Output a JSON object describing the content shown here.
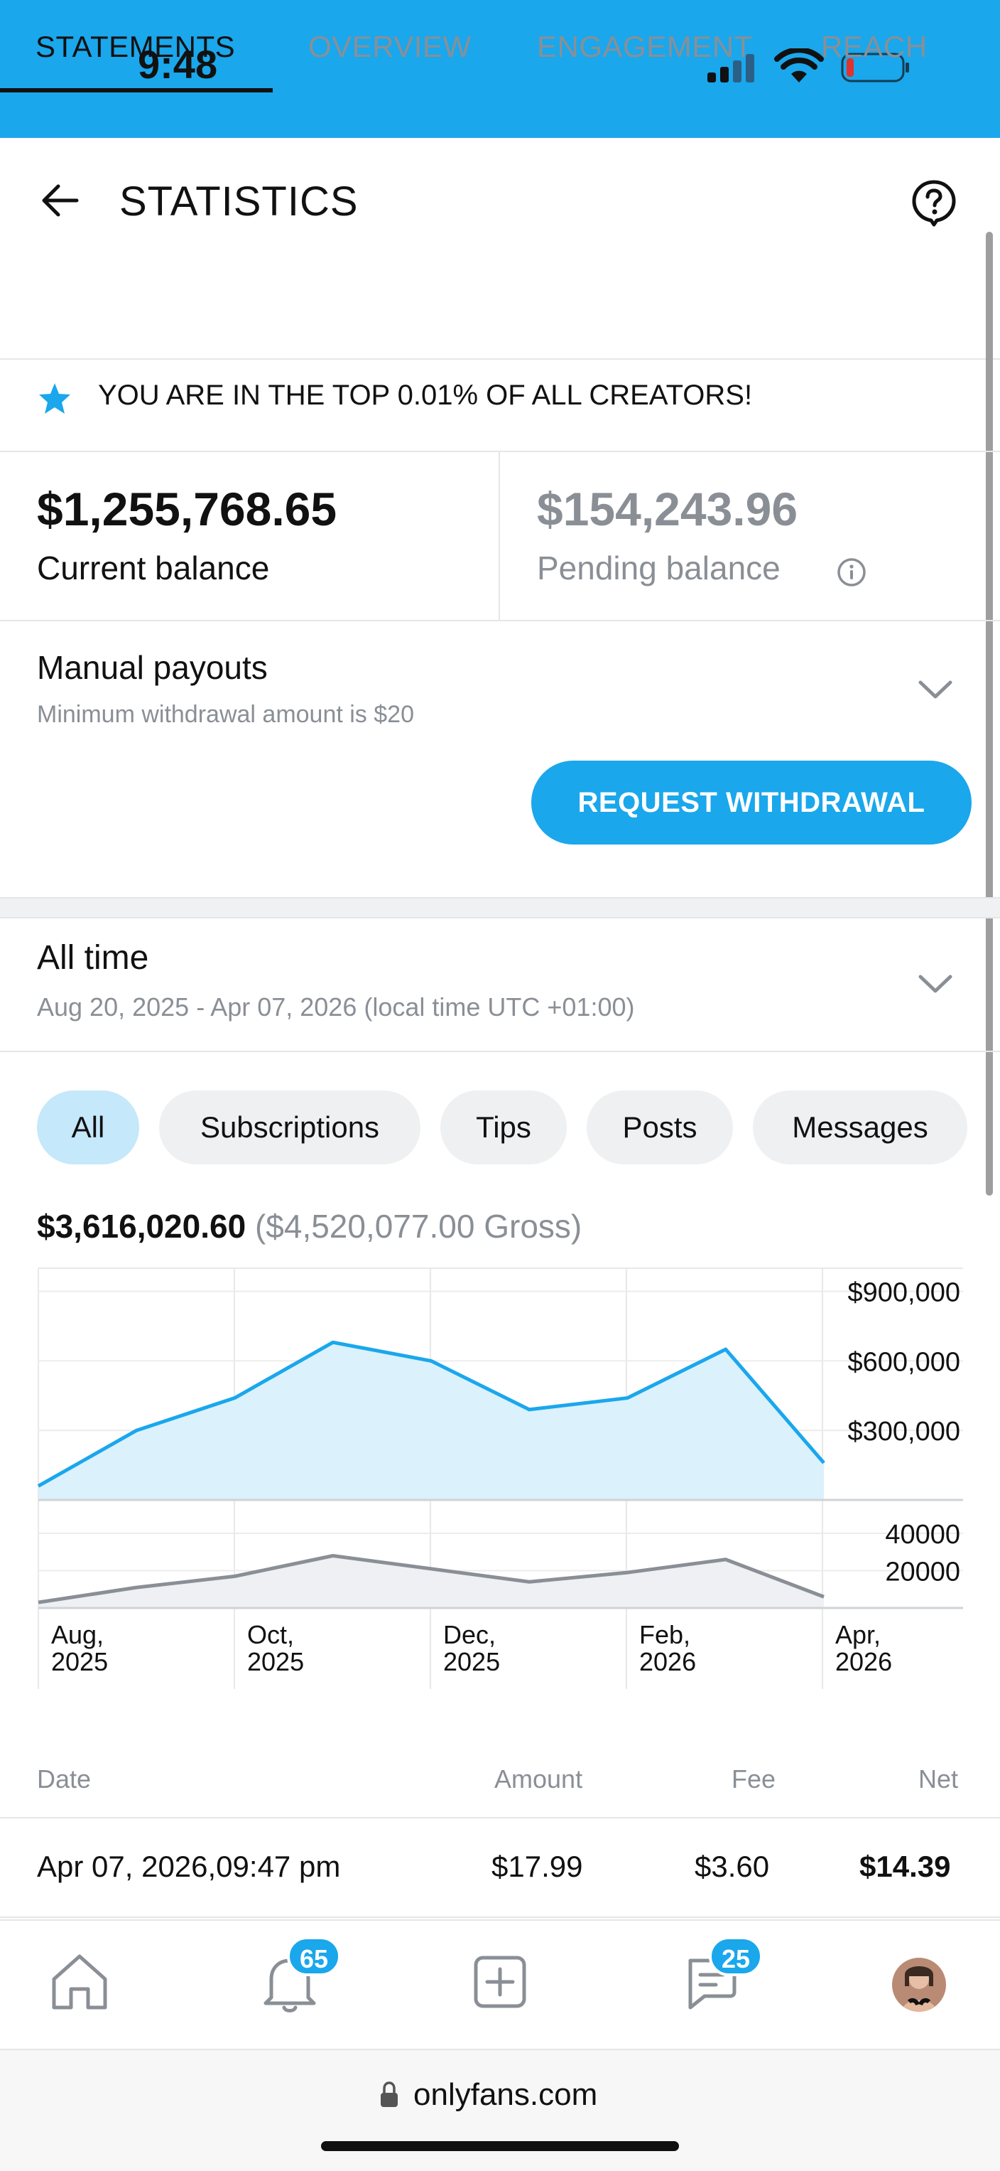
{
  "status_bar": {
    "time": "9:48",
    "background": "#1aa7ec"
  },
  "header": {
    "title": "STATISTICS",
    "back_icon": "arrow-left-icon",
    "help_icon": "question-bubble-icon"
  },
  "tabs": [
    {
      "label": "STATEMENTS",
      "active": true
    },
    {
      "label": "OVERVIEW",
      "active": false
    },
    {
      "label": "ENGAGEMENT",
      "active": false
    },
    {
      "label": "REACH",
      "active": false
    }
  ],
  "banner": {
    "text": "YOU ARE IN THE TOP 0.01% OF ALL CREATORS!",
    "icon": "star-icon"
  },
  "balances": {
    "current_amount": "$1,255,768.65",
    "current_label": "Current balance",
    "pending_amount": "$154,243.96",
    "pending_label": "Pending balance"
  },
  "payouts": {
    "title": "Manual payouts",
    "subtitle": "Minimum withdrawal amount is $20",
    "button": "REQUEST WITHDRAWAL"
  },
  "period": {
    "title": "All time",
    "range": "Aug 20, 2025 - Apr 07, 2026 (local time UTC +01:00)"
  },
  "filters": [
    {
      "label": "All",
      "active": true
    },
    {
      "label": "Subscriptions",
      "active": false
    },
    {
      "label": "Tips",
      "active": false
    },
    {
      "label": "Posts",
      "active": false
    },
    {
      "label": "Messages",
      "active": false
    }
  ],
  "totals": {
    "net": "$3,616,020.60",
    "gross": "($4,520,077.00 Gross)"
  },
  "chart_data": [
    {
      "type": "area",
      "x": [
        "Aug 2025",
        "Sep 2025",
        "Oct 2025",
        "Nov 2025",
        "Dec 2025",
        "Jan 2026",
        "Feb 2026",
        "Mar 2026",
        "Apr 2026"
      ],
      "values": [
        60000,
        300000,
        440000,
        680000,
        600000,
        390000,
        440000,
        650000,
        160000
      ],
      "ylim": [
        0,
        1000000
      ],
      "yticks": [
        "$900,000",
        "$600,000",
        "$300,000"
      ],
      "ytick_values": [
        900000,
        600000,
        300000
      ],
      "color": "#1aa7ec",
      "fill": "#dbf1fc"
    },
    {
      "type": "area",
      "x": [
        "Aug 2025",
        "Sep 2025",
        "Oct 2025",
        "Nov 2025",
        "Dec 2025",
        "Jan 2026",
        "Feb 2026",
        "Mar 2026",
        "Apr 2026"
      ],
      "values": [
        3000,
        11000,
        17000,
        28000,
        21000,
        14000,
        19000,
        26000,
        6000
      ],
      "ylim": [
        0,
        48000
      ],
      "yticks": [
        "40000",
        "20000"
      ],
      "ytick_values": [
        40000,
        20000
      ],
      "color": "#8a8f96",
      "fill": "#eef0f3",
      "xticks": [
        {
          "l1": "Aug,",
          "l2": "2025"
        },
        {
          "l1": "Oct,",
          "l2": "2025"
        },
        {
          "l1": "Dec,",
          "l2": "2025"
        },
        {
          "l1": "Feb,",
          "l2": "2026"
        },
        {
          "l1": "Apr,",
          "l2": "2026"
        }
      ]
    }
  ],
  "table": {
    "headers": {
      "date": "Date",
      "amount": "Amount",
      "fee": "Fee",
      "net": "Net"
    },
    "rows": [
      {
        "date": "Apr 07, 2026,09:47 pm",
        "amount": "$17.99",
        "fee": "$3.60",
        "net": "$14.39"
      }
    ]
  },
  "bottom_nav": {
    "items": [
      "home-icon",
      "bell-icon",
      "plus-square-icon",
      "chat-icon",
      "avatar"
    ],
    "notifications_badge": "65",
    "messages_badge": "25"
  },
  "browser": {
    "url": "onlyfans.com"
  }
}
